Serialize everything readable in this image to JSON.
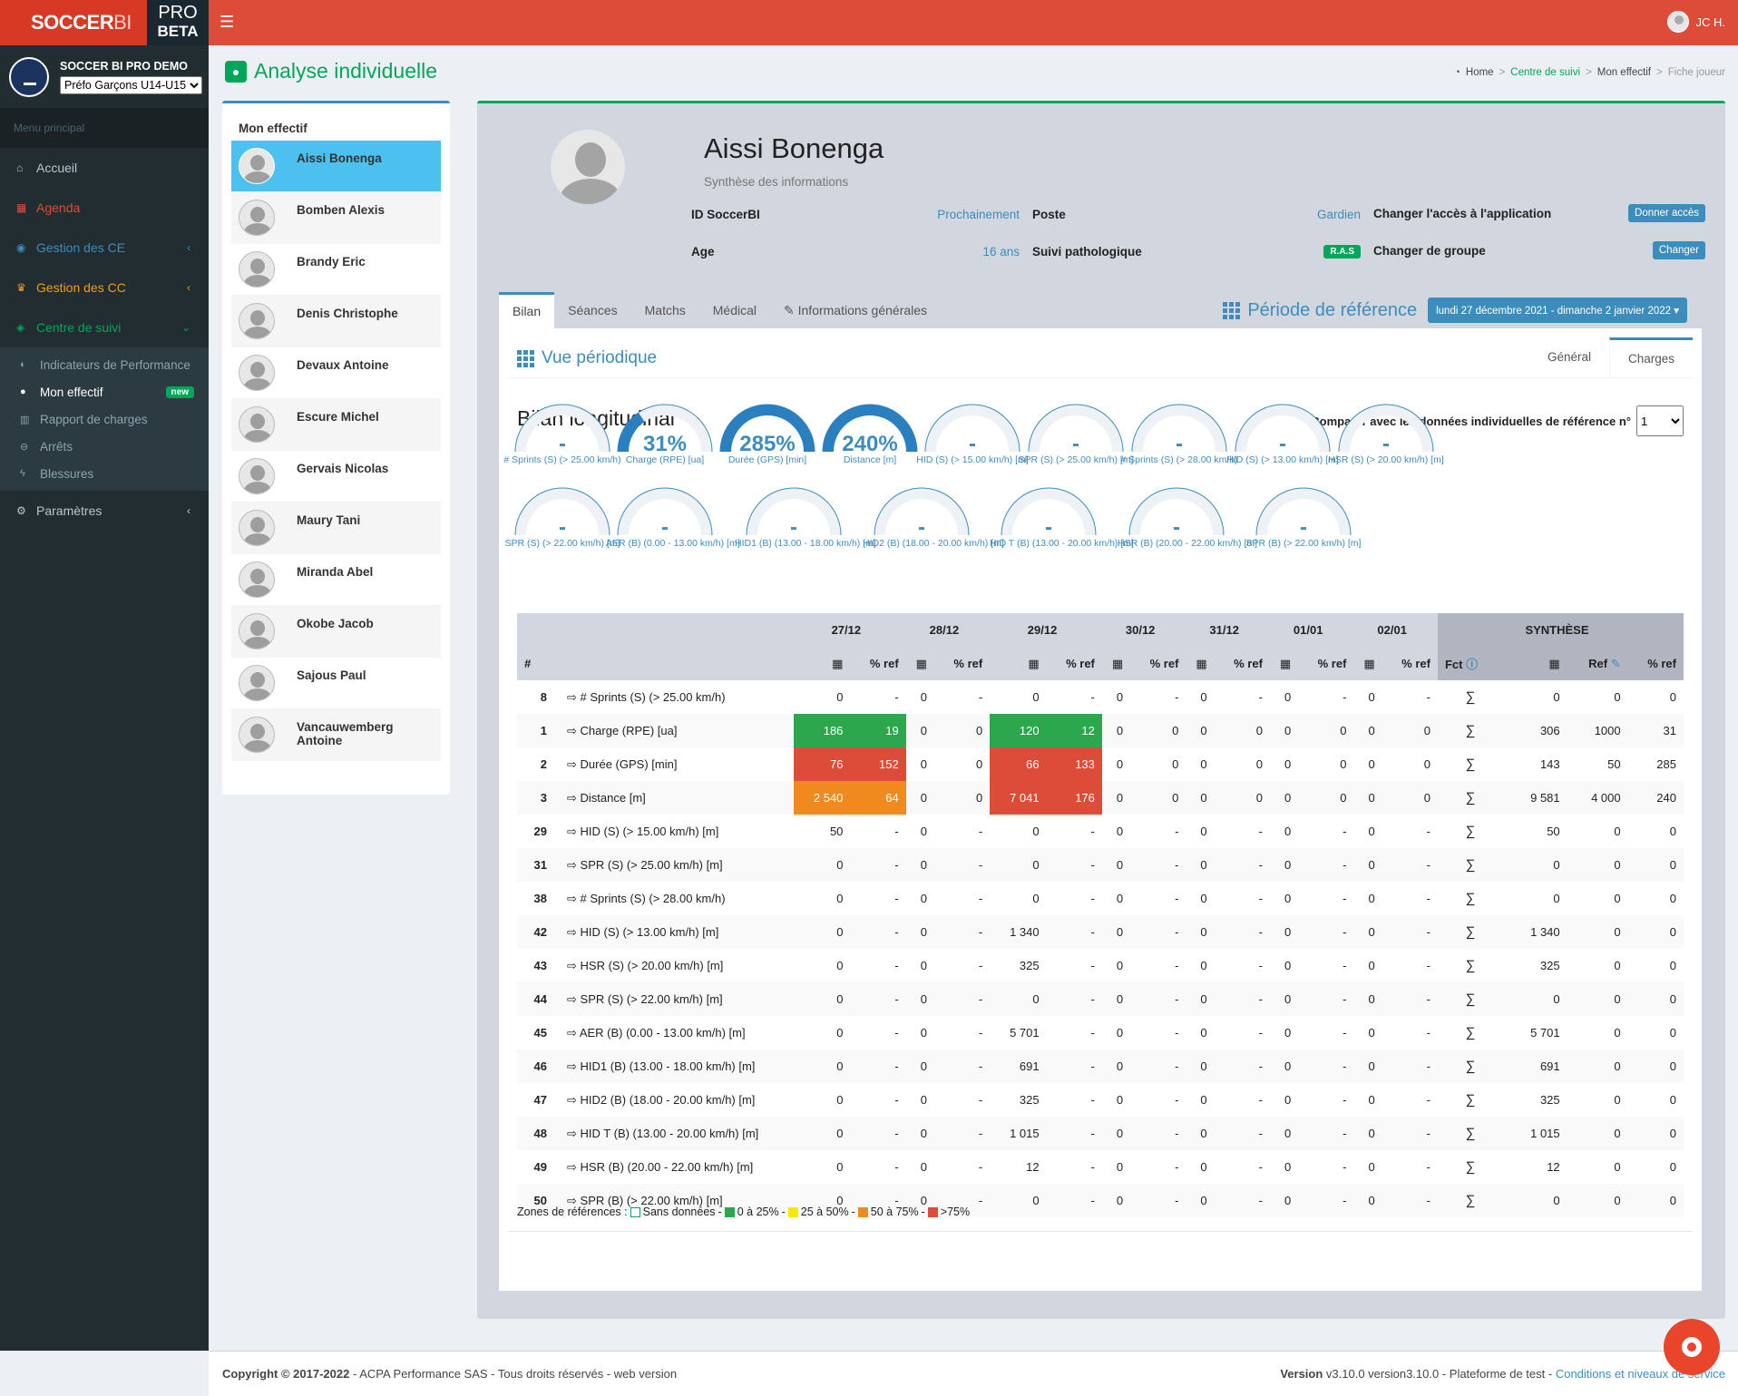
{
  "app": {
    "brand_a": "SOCCER",
    "brand_b": "BI",
    "pro": "PRO",
    "beta": "BETA",
    "user": "JC H."
  },
  "sidebar": {
    "club_name": "SOCCER BI PRO DEMO",
    "group": "Préfo Garçons U14-U15",
    "menu_header": "Menu principal",
    "items": [
      {
        "label": "Accueil"
      },
      {
        "label": "Agenda"
      },
      {
        "label": "Gestion des CE"
      },
      {
        "label": "Gestion des CC"
      },
      {
        "label": "Centre de suivi"
      }
    ],
    "sub": [
      {
        "label": "Indicateurs de Performance"
      },
      {
        "label": "Mon effectif",
        "badge": "new"
      },
      {
        "label": "Rapport de charges"
      },
      {
        "label": "Arrêts"
      },
      {
        "label": "Blessures"
      }
    ],
    "params": "Paramètres"
  },
  "page": {
    "title": "Analyse individuelle"
  },
  "breadcrumb": {
    "home": "Home",
    "centre": "Centre de suivi",
    "effectif": "Mon effectif",
    "fiche": "Fiche joueur"
  },
  "roster": {
    "title": "Mon effectif",
    "players": [
      "Aissi Bonenga",
      "Bomben Alexis",
      "Brandy Eric",
      "Denis Christophe",
      "Devaux Antoine",
      "Escure Michel",
      "Gervais Nicolas",
      "Maury Tani",
      "Miranda Abel",
      "Okobe Jacob",
      "Sajous Paul",
      "Vancauwemberg Antoine"
    ]
  },
  "player": {
    "name": "Aissi Bonenga",
    "subtitle": "Synthèse des informations",
    "id_label": "ID SoccerBI",
    "id_value": "Prochainement",
    "poste_label": "Poste",
    "poste_value": "Gardien",
    "acces_label": "Changer l'accès à l'application",
    "acces_btn": "Donner accès",
    "age_label": "Age",
    "age_value": "16 ans",
    "patho_label": "Suivi pathologique",
    "patho_value": "R.A.S",
    "groupe_label": "Changer de groupe",
    "groupe_btn": "Changer"
  },
  "tabs": [
    "Bilan",
    "Séances",
    "Matchs",
    "Médical",
    "Informations générales"
  ],
  "period": {
    "label": "Période de référence",
    "range": "lundi 27 décembre 2021 - dimanche 2 janvier 2022"
  },
  "view": {
    "title": "Vue périodique",
    "tab_general": "Général",
    "tab_charges": "Charges"
  },
  "bilan": {
    "title": "Bilan longitudinal",
    "compare_label": "Comparer avec les données individuelles de référence n°",
    "compare_value": "1"
  },
  "gauges": [
    {
      "label": "# Sprints (S) (> 25.00 km/h)",
      "value": "-",
      "pct": 0
    },
    {
      "label": "Charge (RPE) [ua]",
      "value": "31%",
      "pct": 0.31
    },
    {
      "label": "Durée (GPS) [min]",
      "value": "285%",
      "pct": 1
    },
    {
      "label": "Distance [m]",
      "value": "240%",
      "pct": 1
    },
    {
      "label": "HID (S) (> 15.00 km/h) [m]",
      "value": "-",
      "pct": 0
    },
    {
      "label": "SPR (S) (> 25.00 km/h) [m]",
      "value": "-",
      "pct": 0
    },
    {
      "label": "# Sprints (S) (> 28.00 km/h)",
      "value": "-",
      "pct": 0
    },
    {
      "label": "HID (S) (> 13.00 km/h) [m]",
      "value": "-",
      "pct": 0
    },
    {
      "label": "HSR (S) (> 20.00 km/h) [m]",
      "value": "-",
      "pct": 0
    },
    {
      "label": "SPR (S) (> 22.00 km/h) [m]",
      "value": "-",
      "pct": 0
    },
    {
      "label": "AER (B) (0.00 - 13.00 km/h) [m]",
      "value": "-",
      "pct": 0
    },
    {
      "label": "HID1 (B) (13.00 - 18.00 km/h) [m]",
      "value": "-",
      "pct": 0
    },
    {
      "label": "HID2 (B) (18.00 - 20.00 km/h) [m]",
      "value": "-",
      "pct": 0
    },
    {
      "label": "HID T (B) (13.00 - 20.00 km/h) [m]",
      "value": "-",
      "pct": 0
    },
    {
      "label": "HSR (B) (20.00 - 22.00 km/h) [m]",
      "value": "-",
      "pct": 0
    },
    {
      "label": "SPR (B) (> 22.00 km/h) [m]",
      "value": "-",
      "pct": 0
    }
  ],
  "table": {
    "dates": [
      "27/12",
      "28/12",
      "29/12",
      "30/12",
      "31/12",
      "01/01",
      "02/01"
    ],
    "synthese": "SYNTHÈSE",
    "hash": "#",
    "pct_ref": "% ref",
    "fct": "Fct",
    "ref": "Ref",
    "rows": [
      {
        "n": "8",
        "label": "# Sprints (S) (> 25.00 km/h)",
        "cells": [
          "0",
          "-",
          "0",
          "-",
          "0",
          "-",
          "0",
          "-",
          "0",
          "-",
          "0",
          "-",
          "0",
          "-"
        ],
        "syn": [
          "0",
          "0",
          "0"
        ]
      },
      {
        "n": "1",
        "label": "Charge (RPE) [ua]",
        "cells": [
          "186",
          "19",
          "0",
          "0",
          "120",
          "12",
          "0",
          "0",
          "0",
          "0",
          "0",
          "0",
          "0",
          "0"
        ],
        "syn": [
          "306",
          "1000",
          "31"
        ],
        "colors": [
          "g",
          "g",
          "",
          "",
          "g",
          "g"
        ]
      },
      {
        "n": "2",
        "label": "Durée (GPS) [min]",
        "cells": [
          "76",
          "152",
          "0",
          "0",
          "66",
          "133",
          "0",
          "0",
          "0",
          "0",
          "0",
          "0",
          "0",
          "0"
        ],
        "syn": [
          "143",
          "50",
          "285"
        ],
        "colors": [
          "r",
          "r",
          "",
          "",
          "r",
          "r"
        ]
      },
      {
        "n": "3",
        "label": "Distance [m]",
        "cells": [
          "2 540",
          "64",
          "0",
          "0",
          "7 041",
          "176",
          "0",
          "0",
          "0",
          "0",
          "0",
          "0",
          "0",
          "0"
        ],
        "syn": [
          "9 581",
          "4 000",
          "240"
        ],
        "colors": [
          "o",
          "o",
          "",
          "",
          "r",
          "r"
        ]
      },
      {
        "n": "29",
        "label": "HID (S) (> 15.00 km/h) [m]",
        "cells": [
          "50",
          "-",
          "0",
          "-",
          "0",
          "-",
          "0",
          "-",
          "0",
          "-",
          "0",
          "-",
          "0",
          "-"
        ],
        "syn": [
          "50",
          "0",
          "0"
        ]
      },
      {
        "n": "31",
        "label": "SPR (S) (> 25.00 km/h) [m]",
        "cells": [
          "0",
          "-",
          "0",
          "-",
          "0",
          "-",
          "0",
          "-",
          "0",
          "-",
          "0",
          "-",
          "0",
          "-"
        ],
        "syn": [
          "0",
          "0",
          "0"
        ]
      },
      {
        "n": "38",
        "label": "# Sprints (S) (> 28.00 km/h)",
        "cells": [
          "0",
          "-",
          "0",
          "-",
          "0",
          "-",
          "0",
          "-",
          "0",
          "-",
          "0",
          "-",
          "0",
          "-"
        ],
        "syn": [
          "0",
          "0",
          "0"
        ]
      },
      {
        "n": "42",
        "label": "HID (S) (> 13.00 km/h) [m]",
        "cells": [
          "0",
          "-",
          "0",
          "-",
          "1 340",
          "-",
          "0",
          "-",
          "0",
          "-",
          "0",
          "-",
          "0",
          "-"
        ],
        "syn": [
          "1 340",
          "0",
          "0"
        ]
      },
      {
        "n": "43",
        "label": "HSR (S) (> 20.00 km/h) [m]",
        "cells": [
          "0",
          "-",
          "0",
          "-",
          "325",
          "-",
          "0",
          "-",
          "0",
          "-",
          "0",
          "-",
          "0",
          "-"
        ],
        "syn": [
          "325",
          "0",
          "0"
        ]
      },
      {
        "n": "44",
        "label": "SPR (S) (> 22.00 km/h) [m]",
        "cells": [
          "0",
          "-",
          "0",
          "-",
          "0",
          "-",
          "0",
          "-",
          "0",
          "-",
          "0",
          "-",
          "0",
          "-"
        ],
        "syn": [
          "0",
          "0",
          "0"
        ]
      },
      {
        "n": "45",
        "label": "AER (B) (0.00 - 13.00 km/h) [m]",
        "cells": [
          "0",
          "-",
          "0",
          "-",
          "5 701",
          "-",
          "0",
          "-",
          "0",
          "-",
          "0",
          "-",
          "0",
          "-"
        ],
        "syn": [
          "5 701",
          "0",
          "0"
        ]
      },
      {
        "n": "46",
        "label": "HID1 (B) (13.00 - 18.00 km/h) [m]",
        "cells": [
          "0",
          "-",
          "0",
          "-",
          "691",
          "-",
          "0",
          "-",
          "0",
          "-",
          "0",
          "-",
          "0",
          "-"
        ],
        "syn": [
          "691",
          "0",
          "0"
        ]
      },
      {
        "n": "47",
        "label": "HID2 (B) (18.00 - 20.00 km/h) [m]",
        "cells": [
          "0",
          "-",
          "0",
          "-",
          "325",
          "-",
          "0",
          "-",
          "0",
          "-",
          "0",
          "-",
          "0",
          "-"
        ],
        "syn": [
          "325",
          "0",
          "0"
        ]
      },
      {
        "n": "48",
        "label": "HID T (B) (13.00 - 20.00 km/h) [m]",
        "cells": [
          "0",
          "-",
          "0",
          "-",
          "1 015",
          "-",
          "0",
          "-",
          "0",
          "-",
          "0",
          "-",
          "0",
          "-"
        ],
        "syn": [
          "1 015",
          "0",
          "0"
        ]
      },
      {
        "n": "49",
        "label": "HSR (B) (20.00 - 22.00 km/h) [m]",
        "cells": [
          "0",
          "-",
          "0",
          "-",
          "12",
          "-",
          "0",
          "-",
          "0",
          "-",
          "0",
          "-",
          "0",
          "-"
        ],
        "syn": [
          "12",
          "0",
          "0"
        ]
      },
      {
        "n": "50",
        "label": "SPR (B) (> 22.00 km/h) [m]",
        "cells": [
          "0",
          "-",
          "0",
          "-",
          "0",
          "-",
          "0",
          "-",
          "0",
          "-",
          "0",
          "-",
          "0",
          "-"
        ],
        "syn": [
          "0",
          "0",
          "0"
        ]
      }
    ]
  },
  "legend": {
    "prefix": "Zones de références :",
    "none": "Sans données",
    "z1": "0 à 25%",
    "z2": "25 à 50%",
    "z3": "50 à 75%",
    "z4": ">75%",
    "colors": [
      "#2ca74d",
      "#ffe600",
      "#f0891e",
      "#dd4b39"
    ]
  },
  "footer": {
    "copyright": "Copyright © 2017-2022",
    "rest": " - ACPA Performance SAS - Tous droits réservés - web version",
    "version_label": "Version",
    "version": " v3.10.0 version3.10.0 - Plateforme de test - ",
    "link": "Conditions et niveaux de service"
  }
}
